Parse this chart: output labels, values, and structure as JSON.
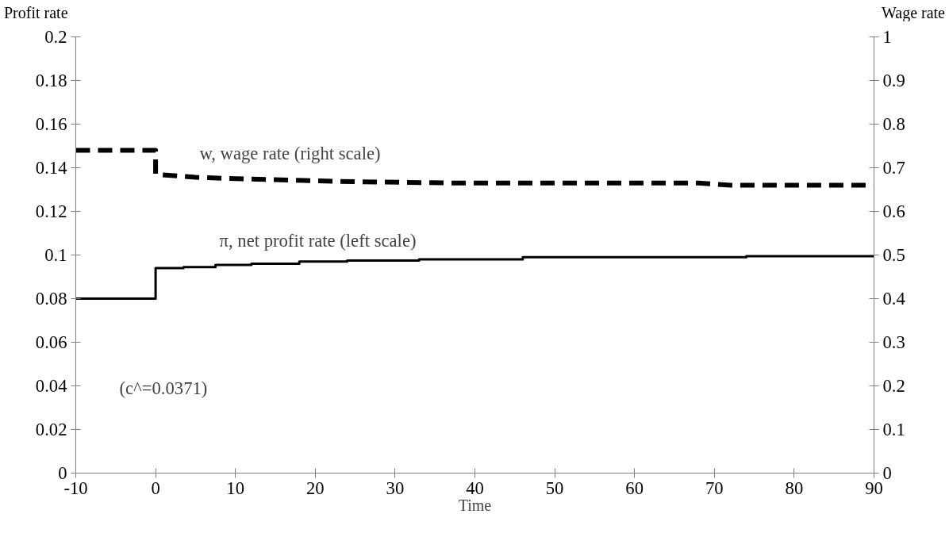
{
  "chart_data": {
    "type": "line",
    "xlabel": "Time",
    "ylabel": "Profit rate",
    "y2label": "Wage rate",
    "xlim": [
      -10,
      90
    ],
    "xticks": [
      -10,
      0,
      10,
      20,
      30,
      40,
      50,
      60,
      70,
      80,
      90
    ],
    "ylim": [
      0,
      0.2
    ],
    "yticks": [
      0,
      0.02,
      0.04,
      0.06,
      0.08,
      0.1,
      0.12,
      0.14,
      0.16,
      0.18,
      0.2
    ],
    "y2lim": [
      0,
      1
    ],
    "y2ticks": [
      0,
      0.1,
      0.2,
      0.3,
      0.4,
      0.5,
      0.6,
      0.7,
      0.8,
      0.9,
      1
    ],
    "grid": false,
    "legend": false,
    "annotations": [
      "(c^=0.0371)"
    ],
    "series": [
      {
        "name": "w, wage rate (right scale)",
        "axis": "y2",
        "color": "#000000",
        "line_style": "dashed",
        "x": [
          -10,
          0,
          0,
          5,
          10,
          20,
          25,
          38,
          68,
          72,
          90
        ],
        "values": [
          0.74,
          0.74,
          0.685,
          0.678,
          0.675,
          0.67,
          0.668,
          0.665,
          0.665,
          0.66,
          0.66
        ]
      },
      {
        "name": "π, net profit rate (left scale)",
        "type": "step",
        "color": "#000000",
        "line_style": "solid",
        "x": [
          -10,
          0,
          3.5,
          7.5,
          12,
          18,
          24,
          33,
          46,
          74,
          90
        ],
        "values": [
          0.08,
          0.094,
          0.0945,
          0.0955,
          0.096,
          0.097,
          0.0975,
          0.098,
          0.099,
          0.0995,
          0.0995
        ]
      }
    ]
  }
}
